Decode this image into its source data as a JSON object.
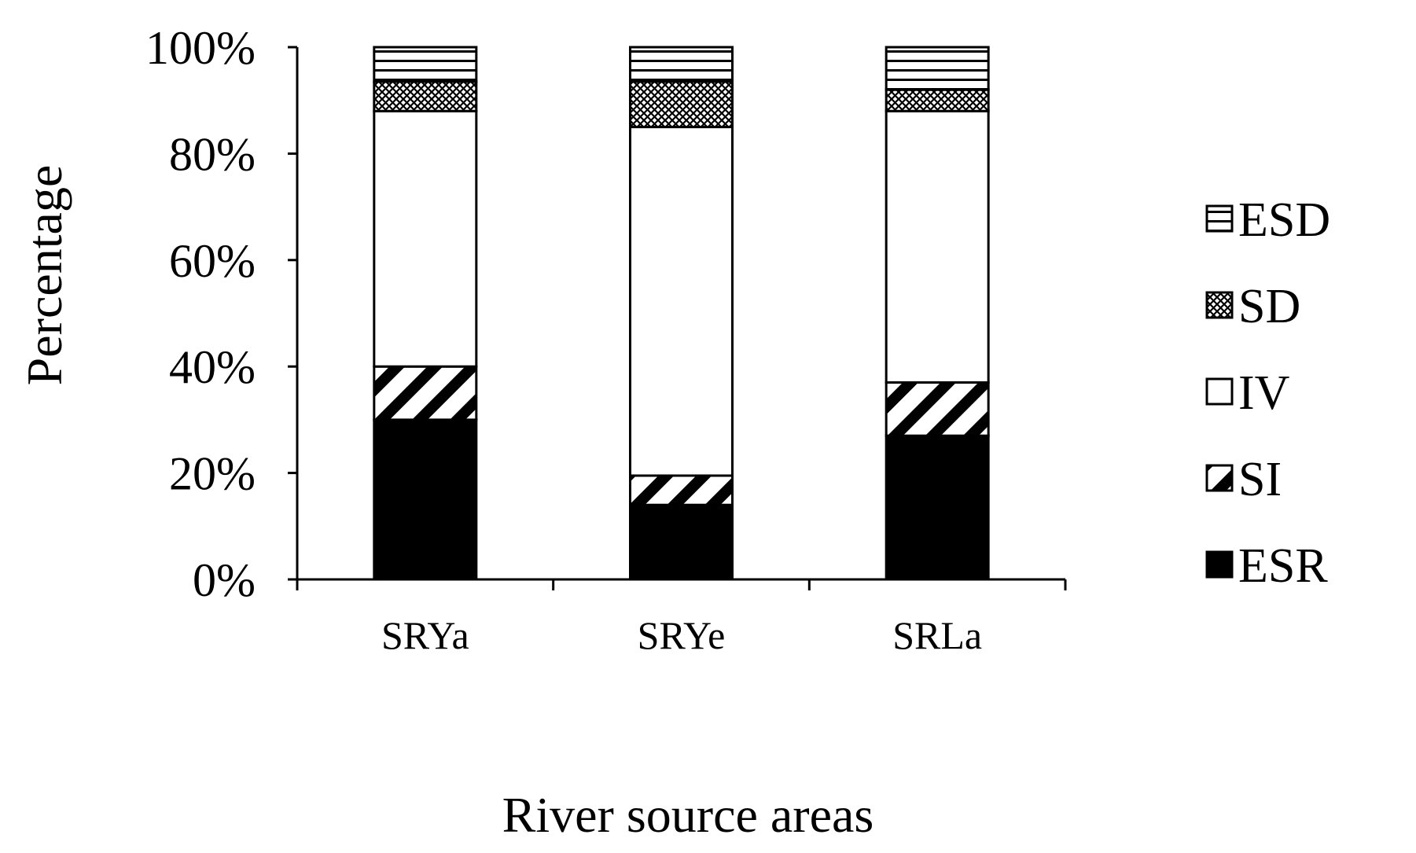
{
  "chart_data": {
    "type": "bar",
    "stacked": true,
    "percent_stacked": true,
    "categories": [
      "SRYa",
      "SRYe",
      "SRLa"
    ],
    "series": [
      {
        "name": "ESR",
        "values": [
          30,
          14,
          27
        ],
        "pattern": "solid"
      },
      {
        "name": "SI",
        "values": [
          10,
          5.5,
          10
        ],
        "pattern": "diagonal"
      },
      {
        "name": "IV",
        "values": [
          48,
          65.5,
          51
        ],
        "pattern": "none"
      },
      {
        "name": "SD",
        "values": [
          5.5,
          8.5,
          4
        ],
        "pattern": "crosshatch"
      },
      {
        "name": "ESD",
        "values": [
          6.5,
          6.5,
          8
        ],
        "pattern": "horizontal"
      }
    ],
    "xlabel": "River source areas",
    "ylabel": "Percentage",
    "ylim": [
      0,
      100
    ],
    "yticks": [
      "0%",
      "20%",
      "40%",
      "60%",
      "80%",
      "100%"
    ],
    "grid": false,
    "legend": {
      "placement": "right",
      "order": [
        "ESD",
        "SD",
        "IV",
        "SI",
        "ESR"
      ]
    },
    "colors": {
      "bar_fill": "#000000",
      "background": "#ffffff"
    }
  }
}
